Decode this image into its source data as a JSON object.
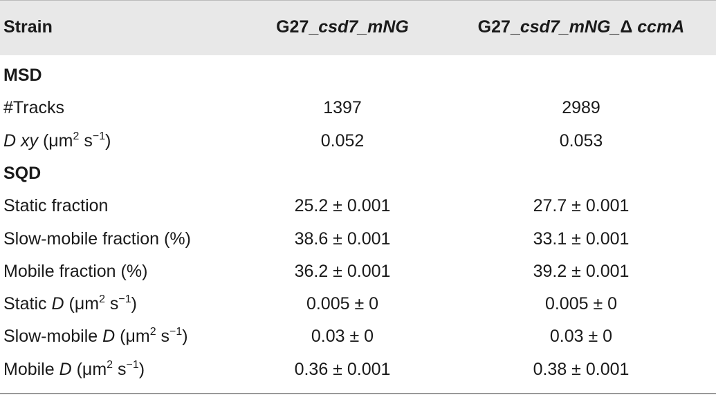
{
  "table": {
    "header": [
      [
        {
          "t": "Strain"
        }
      ],
      [
        {
          "t": "G27_"
        },
        {
          "t": "csd7_mNG",
          "f": "i"
        }
      ],
      [
        {
          "t": "G27_"
        },
        {
          "t": "csd7_mNG_",
          "f": "i"
        },
        {
          "t": "Δ "
        },
        {
          "t": "ccmA",
          "f": "i"
        }
      ]
    ],
    "rows": [
      {
        "section": "MSD"
      },
      {
        "label": [
          {
            "t": "#Tracks"
          }
        ],
        "values": [
          "1397",
          "2989"
        ]
      },
      {
        "label": [
          {
            "t": "D xy",
            "f": "i"
          },
          {
            "t": " (μm"
          },
          {
            "t": "2",
            "f": "sup"
          },
          {
            "t": " s"
          },
          {
            "t": "−1",
            "f": "sup"
          },
          {
            "t": ")"
          }
        ],
        "values": [
          "0.052",
          "0.053"
        ]
      },
      {
        "section": "SQD"
      },
      {
        "label": [
          {
            "t": "Static fraction"
          }
        ],
        "values": [
          "25.2 ± 0.001",
          "27.7 ± 0.001"
        ]
      },
      {
        "label": [
          {
            "t": "Slow-mobile fraction (%)"
          }
        ],
        "values": [
          "38.6 ± 0.001",
          "33.1 ± 0.001"
        ]
      },
      {
        "label": [
          {
            "t": "Mobile fraction (%)"
          }
        ],
        "values": [
          "36.2 ± 0.001",
          "39.2 ± 0.001"
        ]
      },
      {
        "label": [
          {
            "t": "Static "
          },
          {
            "t": "D",
            "f": "i"
          },
          {
            "t": " (μm"
          },
          {
            "t": "2",
            "f": "sup"
          },
          {
            "t": " s"
          },
          {
            "t": "−1",
            "f": "sup"
          },
          {
            "t": ")"
          }
        ],
        "values": [
          "0.005 ± 0",
          "0.005 ± 0"
        ]
      },
      {
        "label": [
          {
            "t": "Slow-mobile "
          },
          {
            "t": "D",
            "f": "i"
          },
          {
            "t": " (μm"
          },
          {
            "t": "2",
            "f": "sup"
          },
          {
            "t": " s"
          },
          {
            "t": "−1",
            "f": "sup"
          },
          {
            "t": ")"
          }
        ],
        "values": [
          "0.03 ± 0",
          "0.03 ± 0"
        ]
      },
      {
        "label": [
          {
            "t": "Mobile "
          },
          {
            "t": "D",
            "f": "i"
          },
          {
            "t": " (μm"
          },
          {
            "t": "2",
            "f": "sup"
          },
          {
            "t": " s"
          },
          {
            "t": "−1",
            "f": "sup"
          },
          {
            "t": ")"
          }
        ],
        "values": [
          "0.36 ± 0.001",
          "0.38 ± 0.001"
        ]
      }
    ]
  }
}
